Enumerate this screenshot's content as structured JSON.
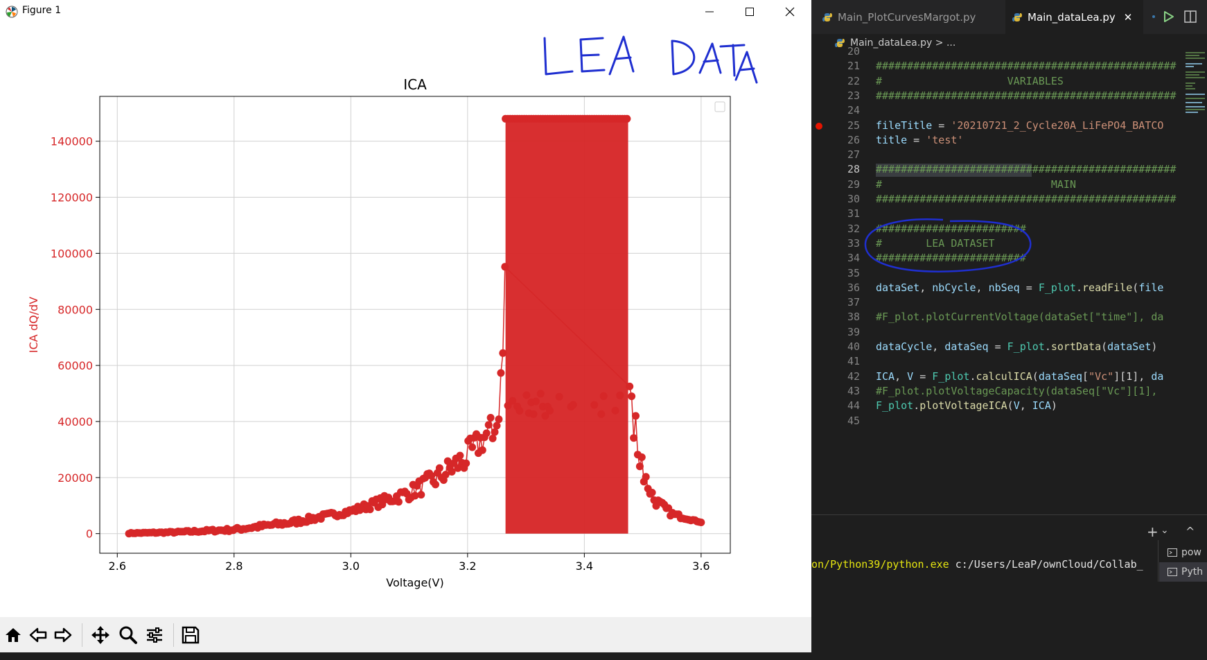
{
  "figure_window": {
    "title": "Figure 1",
    "handwritten_note": "LEA DATA"
  },
  "toolbar": {
    "icons": [
      "home-icon",
      "back-arrow-icon",
      "forward-arrow-icon",
      "pan-icon",
      "zoom-icon",
      "configure-subplots-icon",
      "save-icon"
    ]
  },
  "chart_data": {
    "type": "scatter",
    "title": "ICA",
    "xlabel": "Voltage(V)",
    "ylabel": "ICA dQ/dV",
    "xlim": [
      2.57,
      3.65
    ],
    "ylim": [
      -7000,
      156000
    ],
    "xticks": [
      "2.6",
      "2.8",
      "3.0",
      "3.2",
      "3.4",
      "3.6"
    ],
    "yticks": [
      "0",
      "20000",
      "40000",
      "60000",
      "80000",
      "100000",
      "120000",
      "140000"
    ],
    "grid": true,
    "legend": "top-right (empty)",
    "series_color": "#d62728",
    "ylabel_color": "#d62728",
    "approx_envelope": {
      "x": [
        2.62,
        2.7,
        2.8,
        2.9,
        3.0,
        3.1,
        3.15,
        3.2,
        3.24,
        3.26,
        3.27,
        3.46,
        3.47,
        3.49,
        3.5,
        3.52,
        3.55,
        3.6
      ],
      "y_low": [
        0,
        200,
        800,
        3000,
        7000,
        12000,
        16000,
        22000,
        32000,
        45000,
        0,
        0,
        45000,
        30000,
        18000,
        10000,
        6000,
        4000
      ],
      "y_high": [
        300,
        800,
        2000,
        5000,
        9000,
        17000,
        24000,
        33000,
        42000,
        60000,
        148000,
        148000,
        60000,
        40000,
        25000,
        14000,
        8000,
        4000
      ]
    },
    "plateau_max": 148000,
    "plateau_x": [
      3.265,
      3.475
    ]
  },
  "editor": {
    "tabs": [
      {
        "label": "Main_PlotCurvesMargot.py"
      },
      {
        "label": "Main_dataLea.py",
        "close": "✕"
      }
    ],
    "breadcrumb": "Main_dataLea.py  >  ...",
    "lines": [
      {
        "n": "20",
        "t": "",
        "cls": ""
      },
      {
        "n": "21",
        "t": "################################################",
        "cls": "c-comment"
      },
      {
        "n": "22",
        "t": "#                    VARIABLES",
        "cls": "c-comment"
      },
      {
        "n": "23",
        "t": "################################################",
        "cls": "c-comment"
      },
      {
        "n": "24",
        "t": "",
        "cls": ""
      },
      {
        "n": "25",
        "t": "fileTitle = '20210721_2_Cycle20A_LiFePO4_BATCO",
        "cls": "mix1"
      },
      {
        "n": "26",
        "t": "title = 'test'",
        "cls": "mix2"
      },
      {
        "n": "27",
        "t": "",
        "cls": ""
      },
      {
        "n": "28",
        "t": "################################################",
        "cls": "c-comment"
      },
      {
        "n": "29",
        "t": "#                           MAIN",
        "cls": "c-comment"
      },
      {
        "n": "30",
        "t": "################################################",
        "cls": "c-comment"
      },
      {
        "n": "31",
        "t": "",
        "cls": ""
      },
      {
        "n": "32",
        "t": "########################",
        "cls": "c-comment"
      },
      {
        "n": "33",
        "t": "#       LEA DATASET",
        "cls": "c-comment"
      },
      {
        "n": "34",
        "t": "########################",
        "cls": "c-comment"
      },
      {
        "n": "35",
        "t": "",
        "cls": ""
      },
      {
        "n": "36",
        "t": "dataSet, nbCycle, nbSeq = F_plot.readFile(file",
        "cls": "mix3"
      },
      {
        "n": "37",
        "t": "",
        "cls": ""
      },
      {
        "n": "38",
        "t": "#F_plot.plotCurrentVoltage(dataSet[\"time\"], da",
        "cls": "c-comment"
      },
      {
        "n": "39",
        "t": "",
        "cls": ""
      },
      {
        "n": "40",
        "t": "dataCycle, dataSeq = F_plot.sortData(dataSet)",
        "cls": "mix4"
      },
      {
        "n": "41",
        "t": "",
        "cls": ""
      },
      {
        "n": "42",
        "t": "ICA, V = F_plot.calculICA(dataSeq[\"Vc\"][1], da",
        "cls": "mix5"
      },
      {
        "n": "43",
        "t": "#F_plot.plotVoltageCapacity(dataSeq[\"Vc\"][1],",
        "cls": "c-comment"
      },
      {
        "n": "44",
        "t": "F_plot.plotVoltageICA(V, ICA)",
        "cls": "mix6"
      },
      {
        "n": "45",
        "t": "",
        "cls": ""
      }
    ],
    "current_line": "28",
    "breakpoint_line": "25"
  },
  "terminal": {
    "path_exe": "on/Python39/python.exe",
    "path_arg": " c:/Users/LeaP/ownCloud/Collab_",
    "sessions": [
      "pow",
      "Pyth"
    ],
    "panel_icons": [
      "+",
      "⌄",
      "^"
    ]
  }
}
